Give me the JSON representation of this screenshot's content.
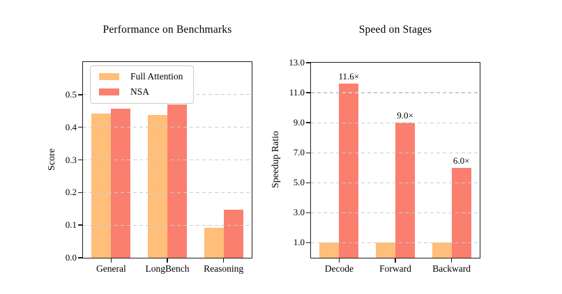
{
  "figure": {
    "background_color": "#ffffff",
    "spine_color": "#1c1c1c",
    "gridline_color": "#cccccc"
  },
  "chart_data": [
    {
      "id": "performance-on-benchmarks",
      "type": "bar",
      "title": "Performance on Benchmarks",
      "xlabel": "",
      "ylabel": "Score",
      "categories": [
        "General",
        "LongBench",
        "Reasoning"
      ],
      "series": [
        {
          "name": "Full Attention",
          "color": "#FFBE7A",
          "values": [
            0.443,
            0.437,
            0.092
          ]
        },
        {
          "name": "NSA",
          "color": "#FA7F6F",
          "values": [
            0.456,
            0.469,
            0.148
          ]
        }
      ],
      "ylim": [
        0,
        0.6
      ],
      "yticks": [
        0.0,
        0.1,
        0.2,
        0.3,
        0.4,
        0.5
      ],
      "ytick_labels": [
        "0.0",
        "0.1",
        "0.2",
        "0.3",
        "0.4",
        "0.5"
      ],
      "grid": "horizontal-dashed",
      "legend_position": "upper left"
    },
    {
      "id": "speed-on-stages",
      "type": "bar",
      "title": "Speed on Stages",
      "xlabel": "",
      "ylabel": "Speedup Ratio",
      "categories": [
        "Decode",
        "Forward",
        "Backward"
      ],
      "series": [
        {
          "name": "Full Attention",
          "color": "#FFBE7A",
          "values": [
            1.0,
            1.0,
            1.0
          ]
        },
        {
          "name": "NSA",
          "color": "#FA7F6F",
          "values": [
            11.6,
            9.0,
            6.0
          ]
        }
      ],
      "annotations": [
        {
          "category": "Decode",
          "series": "NSA",
          "text": "11.6×"
        },
        {
          "category": "Forward",
          "series": "NSA",
          "text": "9.0×"
        },
        {
          "category": "Backward",
          "series": "NSA",
          "text": "6.0×"
        }
      ],
      "ylim": [
        0,
        13
      ],
      "yticks": [
        1.0,
        3.0,
        5.0,
        7.0,
        9.0,
        11.0,
        13.0
      ],
      "ytick_labels": [
        "1.0",
        "3.0",
        "5.0",
        "7.0",
        "9.0",
        "11.0",
        "13.0"
      ],
      "grid": "horizontal-dashed",
      "legend_position": "none"
    }
  ]
}
